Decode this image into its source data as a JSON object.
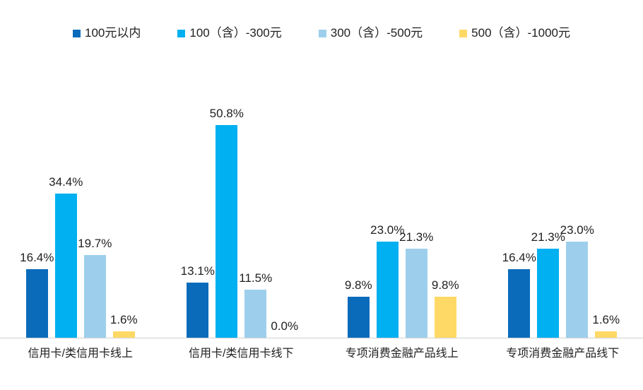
{
  "chart_data": {
    "type": "bar",
    "title": "",
    "xlabel": "",
    "ylabel": "",
    "value_suffix": "%",
    "value_decimals": 1,
    "ylim": [
      0,
      55
    ],
    "gridlines": false,
    "y_axis_visible": false,
    "data_labels": true,
    "legend_position": "top",
    "axis_line_color": "#d2d2d2",
    "label_text_color": "#1f1f1f",
    "categories": [
      "信用卡/类信用卡线上",
      "信用卡/类信用卡线下",
      "专项消费金融产品线上",
      "专项消费金融产品线下"
    ],
    "series": [
      {
        "name": "100元以内",
        "color": "#0a6bbb",
        "values": [
          16.4,
          13.1,
          9.8,
          16.4
        ]
      },
      {
        "name": "100（含）-300元",
        "color": "#00b0f0",
        "values": [
          34.4,
          50.8,
          23.0,
          21.3
        ]
      },
      {
        "name": "300（含）-500元",
        "color": "#9dcfec",
        "values": [
          19.7,
          11.5,
          21.3,
          23.0
        ]
      },
      {
        "name": "500（含）-1000元",
        "color": "#ffd966",
        "values": [
          1.6,
          0.0,
          9.8,
          1.6
        ]
      }
    ]
  }
}
